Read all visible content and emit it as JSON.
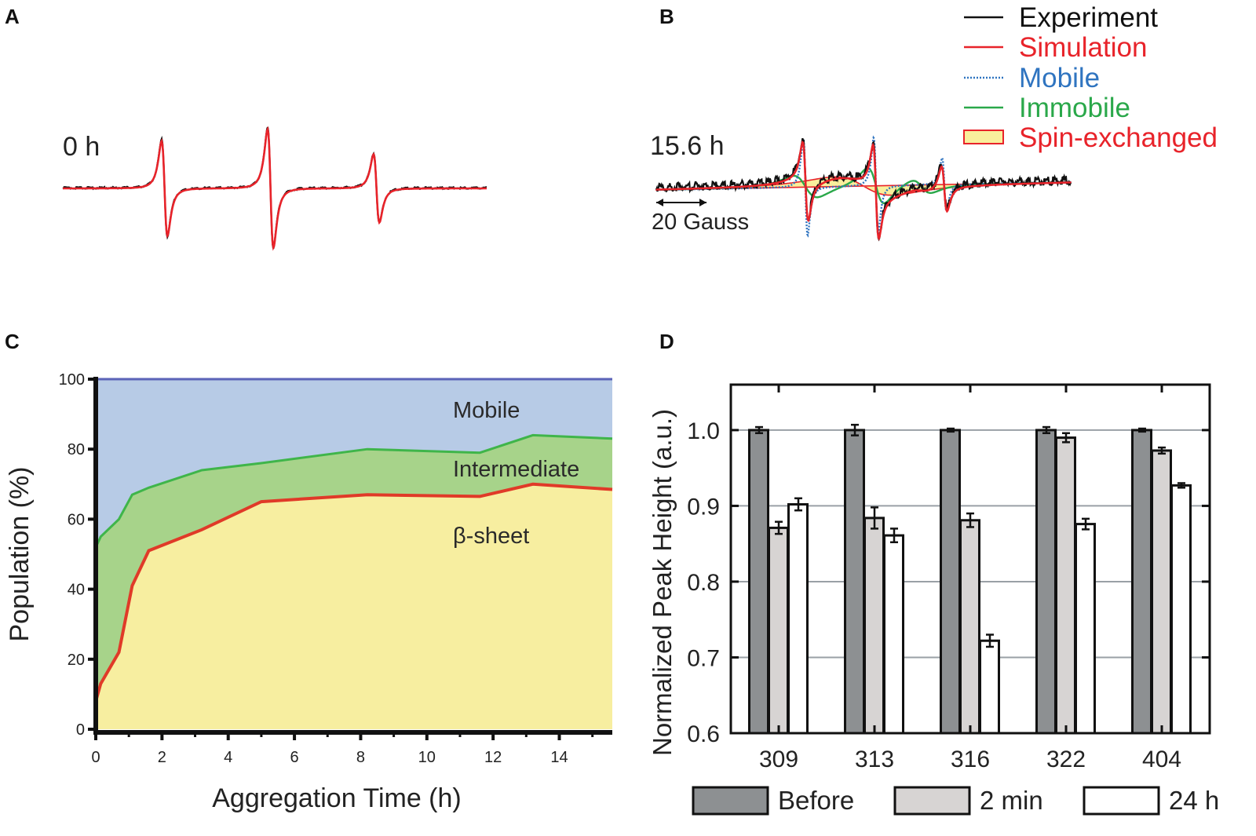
{
  "panels": [
    {
      "label": "A"
    },
    {
      "label": "B"
    },
    {
      "label": "C"
    },
    {
      "label": "D"
    }
  ],
  "chart_data": [
    {
      "type": "line",
      "panel": "A",
      "annotation": "0 h",
      "description_series": [
        {
          "name": "Experiment",
          "color": "#111111"
        },
        {
          "name": "Simulation",
          "color": "#e8232a"
        }
      ],
      "peaks": [
        {
          "center": 0.24,
          "amplitude": 1.0
        },
        {
          "center": 0.49,
          "amplitude": 1.25
        },
        {
          "center": 0.74,
          "amplitude": 0.72
        }
      ]
    },
    {
      "type": "line",
      "panel": "B",
      "annotation": "15.6 h",
      "scale_bar_label": "20 Gauss",
      "legend": [
        {
          "name": "Experiment",
          "color": "#111111",
          "style": "solid"
        },
        {
          "name": "Simulation",
          "color": "#e8232a",
          "style": "solid"
        },
        {
          "name": "Mobile",
          "color": "#2f74c0",
          "style": "dotted"
        },
        {
          "name": "Immobile",
          "color": "#2aa84a",
          "style": "solid"
        },
        {
          "name": "Spin-exchanged",
          "color": "#e8232a",
          "style": "box",
          "fill": "#f9ef9c"
        }
      ]
    },
    {
      "type": "area",
      "panel": "C",
      "xlabel": "Aggregation Time (h)",
      "ylabel": "Population (%)",
      "xlim": [
        0,
        15.6
      ],
      "ylim": [
        0,
        100
      ],
      "xticks": [
        "0",
        "2",
        "4",
        "6",
        "8",
        "10",
        "12",
        "14"
      ],
      "yticks": [
        "0",
        "20",
        "40",
        "60",
        "80",
        "100"
      ],
      "x": [
        0,
        0.15,
        0.7,
        1.1,
        1.6,
        3.2,
        5.0,
        8.2,
        11.6,
        13.2,
        15.6
      ],
      "series": [
        {
          "name": "β-sheet",
          "color": "#f7eea0",
          "line_color": "#e03a28",
          "values": [
            8,
            13,
            22,
            41,
            51,
            57,
            65,
            67,
            66.5,
            70,
            68.5
          ]
        },
        {
          "name": "Intermediate",
          "color": "#a7d38a",
          "line_color": "#3fb54a",
          "values": [
            52,
            55,
            60,
            67,
            69,
            74,
            76,
            80,
            79,
            84,
            83
          ]
        },
        {
          "name": "Mobile",
          "color": "#b7cbe6",
          "line_color": "#5b63b8",
          "values": [
            100,
            100,
            100,
            100,
            100,
            100,
            100,
            100,
            100,
            100,
            100
          ]
        }
      ],
      "area_labels": [
        "Mobile",
        "Intermediate",
        "β-sheet"
      ]
    },
    {
      "type": "bar",
      "panel": "D",
      "ylabel": "Normalized Peak Height (a.u.)",
      "ylim": [
        0.6,
        1.06
      ],
      "yticks": [
        "0.6",
        "0.7",
        "0.8",
        "0.9",
        "1.0"
      ],
      "categories": [
        "309",
        "313",
        "316",
        "322",
        "404"
      ],
      "series": [
        {
          "name": "Before",
          "color": "#8d9092",
          "values": [
            1.0,
            1.0,
            1.0,
            1.0,
            1.0
          ],
          "errors": [
            0.004,
            0.007,
            0.002,
            0.004,
            0.002
          ]
        },
        {
          "name": "2 min",
          "color": "#d7d4d3",
          "values": [
            0.871,
            0.884,
            0.881,
            0.99,
            0.973
          ],
          "errors": [
            0.008,
            0.014,
            0.009,
            0.006,
            0.004
          ]
        },
        {
          "name": "24 h",
          "color": "#ffffff",
          "values": [
            0.902,
            0.861,
            0.722,
            0.876,
            0.927
          ],
          "errors": [
            0.008,
            0.009,
            0.008,
            0.007,
            0.003
          ]
        }
      ],
      "legend": [
        "Before",
        "2 min",
        "24 h"
      ]
    }
  ]
}
